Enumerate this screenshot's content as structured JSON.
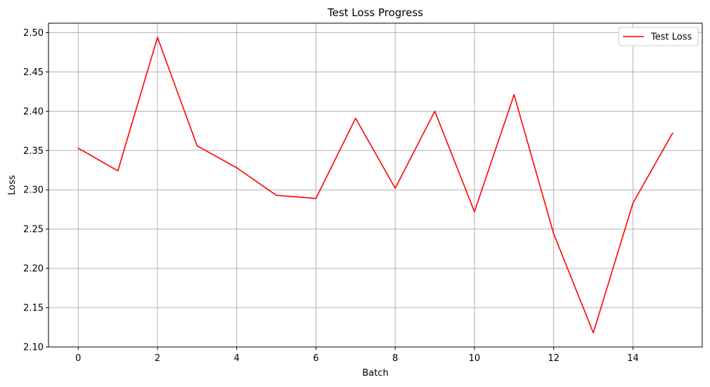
{
  "chart_data": {
    "type": "line",
    "title": "Test Loss Progress",
    "xlabel": "Batch",
    "ylabel": "Loss",
    "xlim": [
      -0.75,
      15.75
    ],
    "ylim": [
      2.1,
      2.512
    ],
    "xticks": [
      0,
      2,
      4,
      6,
      8,
      10,
      12,
      14
    ],
    "xtick_labels": [
      "0",
      "2",
      "4",
      "6",
      "8",
      "10",
      "12",
      "14"
    ],
    "yticks": [
      2.1,
      2.15,
      2.2,
      2.25,
      2.3,
      2.35,
      2.4,
      2.45,
      2.5
    ],
    "ytick_labels": [
      "2.10",
      "2.15",
      "2.20",
      "2.25",
      "2.30",
      "2.35",
      "2.40",
      "2.45",
      "2.50"
    ],
    "grid": true,
    "legend": {
      "placement": "top-right"
    },
    "series": [
      {
        "name": "Test Loss",
        "color": "#ff0000",
        "x": [
          0,
          1,
          2,
          3,
          4,
          5,
          6,
          7,
          8,
          9,
          10,
          11,
          12,
          13,
          14,
          15
        ],
        "y": [
          2.353,
          2.324,
          2.494,
          2.356,
          2.328,
          2.293,
          2.289,
          2.391,
          2.302,
          2.4,
          2.272,
          2.421,
          2.244,
          2.118,
          2.283,
          2.372
        ]
      }
    ]
  }
}
